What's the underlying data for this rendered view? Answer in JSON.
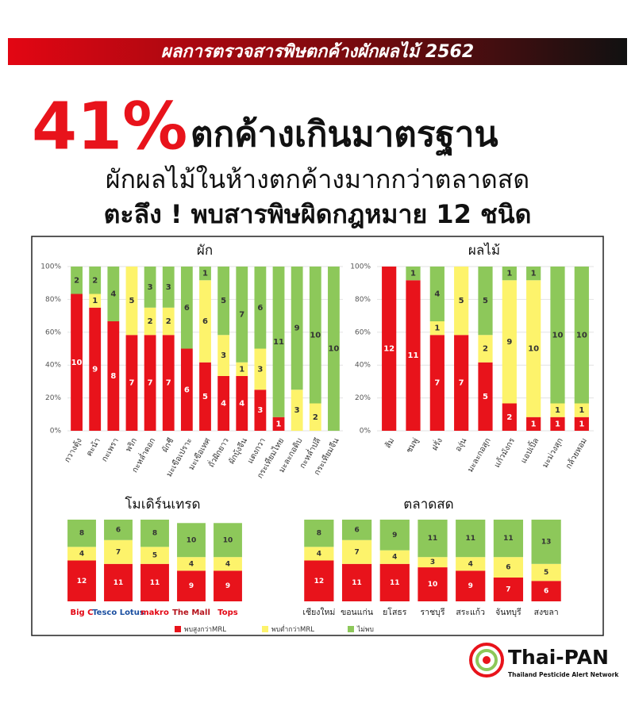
{
  "header": {
    "banner": "ผลการตรวจสารพิษตกค้างผักผลไม้ 2562",
    "headline_percent": "41%",
    "headline_text": "ตกค้างเกินมาตรฐาน",
    "subtitle": "ผักผลไม้ในห้างตกค้างมากกว่าตลาดสด",
    "note": "ตะลึง ! พบสารพิษผิดกฎหมาย 12 ชนิด"
  },
  "legend": [
    {
      "name": "พบสูงกว่าMRL",
      "color": "#e8131b"
    },
    {
      "name": "พบต่ำกว่าMRL",
      "color": "#fdf36b"
    },
    {
      "name": "ไม่พบ",
      "color": "#8dc85a"
    }
  ],
  "chart_data": [
    {
      "type": "bar",
      "stacked": "percent",
      "title": "ผัก",
      "categories": [
        "กวางตุ้ง",
        "คะน้า",
        "กะเพรา",
        "พริก",
        "กะหล่ำดอก",
        "ผักชี",
        "มะเขือเปราะ",
        "มะเขือเทศ",
        "ถั่วฝักยาว",
        "ผักบุ้งจีน",
        "แตงกวา",
        "กระเทียมไทย",
        "มะละกอดิบ",
        "กะหล่ำปลี",
        "กระเทียมจีน"
      ],
      "series": [
        {
          "values": [
            10,
            9,
            8,
            7,
            7,
            7,
            6,
            5,
            4,
            4,
            3,
            1,
            0,
            0,
            0
          ]
        },
        {
          "values": [
            0,
            1,
            0,
            5,
            2,
            2,
            0,
            6,
            3,
            1,
            3,
            0,
            3,
            2,
            0
          ]
        },
        {
          "values": [
            2,
            2,
            4,
            0,
            3,
            3,
            6,
            1,
            5,
            7,
            6,
            11,
            9,
            10,
            10
          ]
        }
      ],
      "ylim": [
        0,
        100
      ],
      "yticks": [
        {
          "value": 0,
          "label": "0%"
        },
        {
          "value": 20,
          "label": "20%"
        },
        {
          "value": 40,
          "label": "40%"
        },
        {
          "value": 60,
          "label": "60%"
        },
        {
          "value": 80,
          "label": "80%"
        },
        {
          "value": 100,
          "label": "100%"
        }
      ],
      "grid": true
    },
    {
      "type": "bar",
      "stacked": "percent",
      "title": "ผลไม้",
      "categories": [
        "ส้ม",
        "ชมพู่",
        "ฝรั่ง",
        "องุ่น",
        "มะละกอสุก",
        "แก้วมังกร",
        "แอปเปิ้ล",
        "มะม่วงสุก",
        "กล้วยหอม"
      ],
      "series": [
        {
          "values": [
            12,
            11,
            7,
            7,
            5,
            2,
            1,
            1,
            1
          ]
        },
        {
          "values": [
            0,
            0,
            1,
            5,
            2,
            9,
            10,
            1,
            1
          ]
        },
        {
          "values": [
            0,
            1,
            4,
            0,
            5,
            1,
            1,
            10,
            10
          ]
        }
      ],
      "ylim": [
        0,
        100
      ],
      "yticks": [
        {
          "value": 0,
          "label": "0%"
        },
        {
          "value": 20,
          "label": "20%"
        },
        {
          "value": 40,
          "label": "40%"
        },
        {
          "value": 60,
          "label": "60%"
        },
        {
          "value": 80,
          "label": "80%"
        },
        {
          "value": 100,
          "label": "100%"
        }
      ],
      "grid": true
    },
    {
      "type": "bar",
      "stacked": "count",
      "title": "โมเดิร์นเทรด",
      "categories": [
        "Big C",
        "Tesco Lotus",
        "makro",
        "The Mall",
        "Tops"
      ],
      "series": [
        {
          "values": [
            12,
            11,
            11,
            9,
            9
          ]
        },
        {
          "values": [
            4,
            7,
            5,
            4,
            4
          ]
        },
        {
          "values": [
            8,
            6,
            8,
            10,
            10
          ]
        }
      ]
    },
    {
      "type": "bar",
      "stacked": "count",
      "title": "ตลาดสด",
      "categories": [
        "เชียงใหม่",
        "ขอนแก่น",
        "ยโสธร",
        "ราชบุรี",
        "สระแก้ว",
        "จันทบุรี",
        "สงขลา"
      ],
      "series": [
        {
          "values": [
            12,
            11,
            11,
            10,
            9,
            7,
            6
          ]
        },
        {
          "values": [
            4,
            7,
            4,
            3,
            4,
            6,
            5
          ]
        },
        {
          "values": [
            8,
            6,
            9,
            11,
            11,
            11,
            13
          ]
        }
      ]
    }
  ],
  "logo": {
    "name": "Thai-PAN",
    "tagline": "Thailand Pesticide Alert Network"
  }
}
